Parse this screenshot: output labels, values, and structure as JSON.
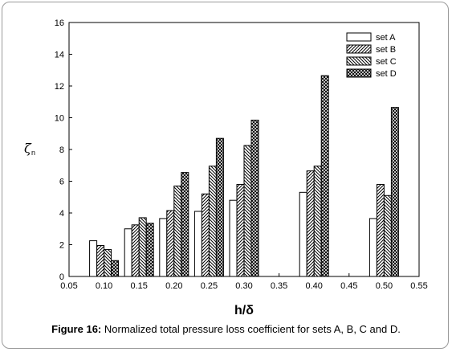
{
  "caption": {
    "label": "Figure 16:",
    "text": "Normalized total pressure loss coefficient for sets A, B, C and D."
  },
  "chart_data": {
    "type": "bar",
    "xlabel": "h/δ",
    "ylabel": "ζ",
    "ylabel_sub": "n",
    "xlim": [
      0.05,
      0.55
    ],
    "ylim": [
      0,
      16
    ],
    "xticks": [
      "0.05",
      "0.10",
      "0.15",
      "0.20",
      "0.25",
      "0.30",
      "0.35",
      "0.40",
      "0.45",
      "0.50",
      "0.55"
    ],
    "yticks": [
      "0",
      "2",
      "4",
      "6",
      "8",
      "10",
      "12",
      "14",
      "16"
    ],
    "grid": false,
    "legend_position": "top-right",
    "categories": [
      0.1,
      0.15,
      0.2,
      0.25,
      0.3,
      0.4,
      0.5
    ],
    "series": [
      {
        "name": "set A",
        "pattern": "blank",
        "values": [
          2.25,
          3.0,
          3.65,
          4.1,
          4.8,
          5.3,
          3.65
        ]
      },
      {
        "name": "set B",
        "pattern": "diagonal-right",
        "values": [
          1.95,
          3.25,
          4.15,
          5.2,
          5.8,
          6.65,
          5.8
        ]
      },
      {
        "name": "set C",
        "pattern": "diagonal-left",
        "values": [
          1.7,
          3.7,
          5.7,
          6.95,
          8.25,
          6.95,
          5.1
        ]
      },
      {
        "name": "set D",
        "pattern": "crosshatch",
        "values": [
          1.0,
          3.35,
          6.55,
          8.7,
          9.85,
          12.65,
          10.65
        ]
      }
    ],
    "colors": {
      "stroke": "#000000",
      "fill": "#ffffff"
    }
  }
}
